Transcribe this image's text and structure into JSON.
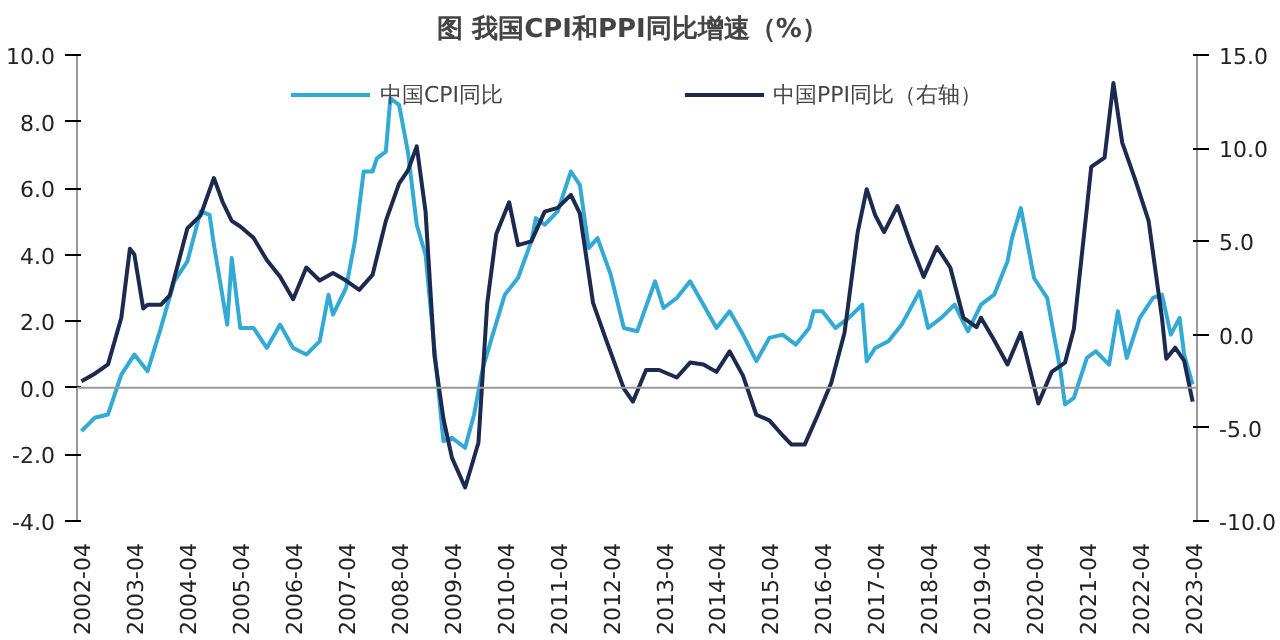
{
  "chart_data": {
    "type": "line",
    "title": "图  我国CPI和PPI同比增速（%）",
    "xlim": [
      "2002-03",
      "2023-05"
    ],
    "xticks": [
      "2002-04",
      "2003-04",
      "2004-04",
      "2005-04",
      "2006-04",
      "2007-04",
      "2008-04",
      "2009-04",
      "2010-04",
      "2011-04",
      "2012-04",
      "2013-04",
      "2014-04",
      "2015-04",
      "2016-04",
      "2017-04",
      "2018-04",
      "2019-04",
      "2020-04",
      "2021-04",
      "2022-04",
      "2023-04"
    ],
    "ylim": [
      -4,
      10
    ],
    "yticks": [
      {
        "value": -4,
        "label": "-4.0"
      },
      {
        "value": -2,
        "label": "-2.0"
      },
      {
        "value": 0,
        "label": "0.0"
      },
      {
        "value": 2,
        "label": "2.0"
      },
      {
        "value": 4,
        "label": "4.0"
      },
      {
        "value": 6,
        "label": "6.0"
      },
      {
        "value": 8,
        "label": "8.0"
      },
      {
        "value": 10,
        "label": "10.0"
      }
    ],
    "y2lim": [
      -10,
      15
    ],
    "y2ticks": [
      {
        "value": -10,
        "label": "-10.0"
      },
      {
        "value": -5,
        "label": "-5.0"
      },
      {
        "value": 0,
        "label": "0.0"
      },
      {
        "value": 5,
        "label": "5.0"
      },
      {
        "value": 10,
        "label": "10.0"
      },
      {
        "value": 15,
        "label": "15.0"
      }
    ],
    "grid": false,
    "legend": "top",
    "line_style": "solid",
    "ref_lines": [
      {
        "axis": "y",
        "value": 0,
        "color": "#999999"
      }
    ],
    "series": [
      {
        "name": "中国CPI同比",
        "color": "#33a9d6",
        "x": [
          "2002-04",
          "2002-07",
          "2002-10",
          "2003-01",
          "2003-04",
          "2003-07",
          "2003-10",
          "2004-01",
          "2004-04",
          "2004-07",
          "2004-09",
          "2004-10",
          "2005-01",
          "2005-02",
          "2005-04",
          "2005-07",
          "2005-10",
          "2006-01",
          "2006-04",
          "2006-07",
          "2006-10",
          "2006-12",
          "2007-01",
          "2007-04",
          "2007-06",
          "2007-08",
          "2007-10",
          "2007-11",
          "2008-01",
          "2008-02",
          "2008-04",
          "2008-06",
          "2008-08",
          "2008-10",
          "2008-12",
          "2009-02",
          "2009-04",
          "2009-07",
          "2009-09",
          "2009-11",
          "2010-01",
          "2010-04",
          "2010-07",
          "2010-10",
          "2010-11",
          "2011-01",
          "2011-04",
          "2011-07",
          "2011-09",
          "2011-11",
          "2012-01",
          "2012-04",
          "2012-07",
          "2012-10",
          "2013-02",
          "2013-04",
          "2013-07",
          "2013-10",
          "2014-01",
          "2014-04",
          "2014-07",
          "2014-10",
          "2015-01",
          "2015-04",
          "2015-07",
          "2015-10",
          "2016-01",
          "2016-02",
          "2016-04",
          "2016-07",
          "2016-10",
          "2017-01",
          "2017-02",
          "2017-04",
          "2017-07",
          "2017-10",
          "2018-02",
          "2018-04",
          "2018-07",
          "2018-10",
          "2019-01",
          "2019-04",
          "2019-07",
          "2019-10",
          "2019-11",
          "2020-01",
          "2020-04",
          "2020-07",
          "2020-10",
          "2020-11",
          "2021-01",
          "2021-04",
          "2021-06",
          "2021-09",
          "2021-11",
          "2022-01",
          "2022-04",
          "2022-07",
          "2022-09",
          "2022-11",
          "2023-01",
          "2023-02",
          "2023-04"
        ],
        "values": [
          -1.3,
          -0.9,
          -0.8,
          0.4,
          1.0,
          0.5,
          1.8,
          3.2,
          3.8,
          5.3,
          5.2,
          4.3,
          1.9,
          3.9,
          1.8,
          1.8,
          1.2,
          1.9,
          1.2,
          1.0,
          1.4,
          2.8,
          2.2,
          3.0,
          4.4,
          6.5,
          6.5,
          6.9,
          7.1,
          8.7,
          8.5,
          7.1,
          4.9,
          4.0,
          1.2,
          -1.6,
          -1.5,
          -1.8,
          -0.8,
          0.6,
          1.5,
          2.8,
          3.3,
          4.4,
          5.1,
          4.9,
          5.3,
          6.5,
          6.1,
          4.2,
          4.5,
          3.4,
          1.8,
          1.7,
          3.2,
          2.4,
          2.7,
          3.2,
          2.5,
          1.8,
          2.3,
          1.6,
          0.8,
          1.5,
          1.6,
          1.3,
          1.8,
          2.3,
          2.3,
          1.8,
          2.1,
          2.5,
          0.8,
          1.2,
          1.4,
          1.9,
          2.9,
          1.8,
          2.1,
          2.5,
          1.7,
          2.5,
          2.8,
          3.8,
          4.5,
          5.4,
          3.3,
          2.7,
          0.5,
          -0.5,
          -0.3,
          0.9,
          1.1,
          0.7,
          2.3,
          0.9,
          2.1,
          2.7,
          2.8,
          1.6,
          2.1,
          1.0,
          0.1
        ]
      },
      {
        "name": "中国PPI同比（右轴）",
        "color": "#1b2a4e",
        "axis": "y2",
        "x": [
          "2002-04",
          "2002-07",
          "2002-10",
          "2003-01",
          "2003-03",
          "2003-04",
          "2003-06",
          "2003-07",
          "2003-10",
          "2003-12",
          "2004-04",
          "2004-07",
          "2004-10",
          "2004-12",
          "2005-02",
          "2005-04",
          "2005-07",
          "2005-10",
          "2006-01",
          "2006-04",
          "2006-07",
          "2006-10",
          "2007-01",
          "2007-04",
          "2007-07",
          "2007-10",
          "2008-01",
          "2008-04",
          "2008-06",
          "2008-08",
          "2008-10",
          "2008-12",
          "2009-02",
          "2009-04",
          "2009-07",
          "2009-10",
          "2009-12",
          "2010-02",
          "2010-05",
          "2010-07",
          "2010-10",
          "2011-01",
          "2011-04",
          "2011-07",
          "2011-09",
          "2011-12",
          "2012-03",
          "2012-07",
          "2012-09",
          "2012-12",
          "2013-03",
          "2013-07",
          "2013-10",
          "2014-01",
          "2014-04",
          "2014-07",
          "2014-10",
          "2015-01",
          "2015-04",
          "2015-07",
          "2015-09",
          "2015-12",
          "2016-03",
          "2016-06",
          "2016-09",
          "2016-12",
          "2017-02",
          "2017-04",
          "2017-06",
          "2017-09",
          "2017-12",
          "2018-03",
          "2018-06",
          "2018-09",
          "2018-12",
          "2019-03",
          "2019-04",
          "2019-07",
          "2019-10",
          "2020-01",
          "2020-05",
          "2020-08",
          "2020-11",
          "2021-01",
          "2021-04",
          "2021-05",
          "2021-08",
          "2021-10",
          "2021-12",
          "2022-03",
          "2022-06",
          "2022-09",
          "2022-10",
          "2022-12",
          "2023-02",
          "2023-04"
        ],
        "values": [
          -2.5,
          -2.1,
          -1.6,
          0.9,
          4.6,
          4.3,
          1.4,
          1.6,
          1.6,
          2.1,
          5.7,
          6.4,
          8.4,
          7.1,
          6.1,
          5.8,
          5.2,
          4.0,
          3.1,
          1.9,
          3.6,
          2.9,
          3.3,
          2.9,
          2.4,
          3.2,
          6.1,
          8.1,
          8.8,
          10.1,
          6.6,
          -1.1,
          -4.5,
          -6.6,
          -8.2,
          -5.8,
          1.7,
          5.4,
          7.1,
          4.8,
          5.0,
          6.6,
          6.8,
          7.5,
          6.5,
          1.7,
          -0.3,
          -2.9,
          -3.6,
          -1.9,
          -1.9,
          -2.3,
          -1.5,
          -1.6,
          -2.0,
          -0.9,
          -2.2,
          -4.3,
          -4.6,
          -5.4,
          -5.9,
          -5.9,
          -4.3,
          -2.6,
          0.1,
          5.5,
          7.8,
          6.4,
          5.5,
          6.9,
          4.9,
          3.1,
          4.7,
          3.6,
          0.9,
          0.4,
          0.9,
          -0.3,
          -1.6,
          0.1,
          -3.7,
          -2.0,
          -1.5,
          0.3,
          6.8,
          9.0,
          9.5,
          13.5,
          10.3,
          8.3,
          6.1,
          0.9,
          -1.3,
          -0.7,
          -1.4,
          -3.6
        ]
      }
    ]
  }
}
